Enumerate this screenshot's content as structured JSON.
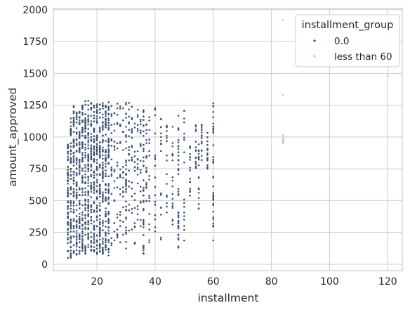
{
  "chart_data": {
    "type": "scatter",
    "xlabel": "installment",
    "ylabel": "amount_approved",
    "xlim": [
      5,
      125
    ],
    "ylim": [
      -50,
      2010
    ],
    "x_ticks": [
      20,
      40,
      60,
      80,
      100,
      120
    ],
    "y_ticks": [
      0,
      250,
      500,
      750,
      1000,
      1250,
      1500,
      1750,
      2000
    ],
    "grid": true,
    "legend": {
      "title": "installment_group",
      "placement": "top-right"
    },
    "series": [
      {
        "name": "0.0",
        "color": "#3b5078",
        "columns": [
          {
            "x": 10,
            "y": [
              50,
              1000
            ]
          },
          {
            "x": 11,
            "y": [
              50,
              1150
            ]
          },
          {
            "x": 12,
            "y": [
              60,
              1250
            ]
          },
          {
            "x": 13,
            "y": [
              70,
              1200
            ]
          },
          {
            "x": 14,
            "y": [
              80,
              1250
            ]
          },
          {
            "x": 15,
            "y": [
              70,
              1290
            ]
          },
          {
            "x": 16,
            "y": [
              80,
              1290
            ]
          },
          {
            "x": 17,
            "y": [
              90,
              1290
            ]
          },
          {
            "x": 18,
            "y": [
              80,
              1290
            ]
          },
          {
            "x": 19,
            "y": [
              90,
              1250
            ]
          },
          {
            "x": 20,
            "y": [
              80,
              1290
            ]
          },
          {
            "x": 21,
            "y": [
              90,
              1290
            ]
          },
          {
            "x": 22,
            "y": [
              80,
              1290
            ]
          },
          {
            "x": 23,
            "y": [
              90,
              1290
            ]
          },
          {
            "x": 24,
            "y": [
              70,
              1290
            ]
          },
          {
            "x": 25,
            "y": [
              150,
              1290
            ]
          },
          {
            "x": 26,
            "y": [
              150,
              1250
            ]
          },
          {
            "x": 27,
            "y": [
              160,
              1290
            ]
          },
          {
            "x": 28,
            "y": [
              130,
              1250
            ]
          },
          {
            "x": 29,
            "y": [
              200,
              1250
            ]
          },
          {
            "x": 30,
            "y": [
              120,
              1290
            ]
          },
          {
            "x": 31,
            "y": [
              190,
              1290
            ]
          },
          {
            "x": 32,
            "y": [
              200,
              1250
            ]
          },
          {
            "x": 33,
            "y": [
              150,
              1250
            ]
          },
          {
            "x": 34,
            "y": [
              250,
              1250
            ]
          },
          {
            "x": 35,
            "y": [
              200,
              1250
            ]
          },
          {
            "x": 36,
            "y": [
              80,
              1250
            ]
          },
          {
            "x": 37,
            "y": [
              480,
              1100
            ]
          },
          {
            "x": 38,
            "y": [
              170,
              1250
            ]
          },
          {
            "x": 40,
            "y": [
              170,
              1250
            ]
          },
          {
            "x": 42,
            "y": [
              80,
              1200
            ]
          },
          {
            "x": 44,
            "y": [
              400,
              1100
            ]
          },
          {
            "x": 46,
            "y": [
              300,
              1100
            ]
          },
          {
            "x": 48,
            "y": [
              100,
              1250
            ]
          },
          {
            "x": 50,
            "y": [
              150,
              1250
            ]
          },
          {
            "x": 52,
            "y": [
              500,
              1000
            ]
          },
          {
            "x": 54,
            "y": [
              700,
              1100
            ]
          },
          {
            "x": 55,
            "y": [
              430,
              1000
            ]
          },
          {
            "x": 56,
            "y": [
              800,
              1100
            ]
          },
          {
            "x": 58,
            "y": [
              750,
              1050
            ]
          },
          {
            "x": 60,
            "y": [
              80,
              1290
            ]
          }
        ]
      },
      {
        "name": "less than 60",
        "color": "#a9d3d8",
        "points": [
          {
            "x": 84,
            "y": 1920
          },
          {
            "x": 84,
            "y": 1330
          },
          {
            "x": 84,
            "y": 1015
          },
          {
            "x": 84,
            "y": 1000
          },
          {
            "x": 84,
            "y": 990
          },
          {
            "x": 84,
            "y": 980
          },
          {
            "x": 84,
            "y": 970
          },
          {
            "x": 84,
            "y": 960
          },
          {
            "x": 84,
            "y": 950
          },
          {
            "x": 120,
            "y": 1480
          }
        ]
      }
    ]
  }
}
